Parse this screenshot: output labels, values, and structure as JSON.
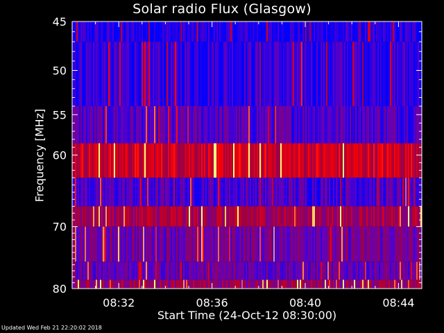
{
  "chart_data": {
    "type": "heatmap",
    "title": "Solar radio Flux (Glasgow)",
    "xlabel": "Start Time (24-Oct-12 08:30:00)",
    "ylabel": "Frequency [MHz]",
    "xlim": [
      "08:30:00",
      "08:45:00"
    ],
    "ylim": [
      80,
      45
    ],
    "x_ticks": [
      "08:32",
      "08:36",
      "08:40",
      "08:44"
    ],
    "y_ticks": [
      45,
      50,
      55,
      60,
      70,
      80
    ],
    "colormap": [
      "#0000ff",
      "#6000c0",
      "#a00040",
      "#ff0000",
      "#ffff80"
    ],
    "bands": [
      {
        "from_mhz": 45,
        "to_mhz": 47,
        "level": 0.08
      },
      {
        "from_mhz": 47,
        "to_mhz": 54,
        "level": 0.14
      },
      {
        "from_mhz": 54,
        "to_mhz": 58.5,
        "level": 0.22
      },
      {
        "from_mhz": 58.5,
        "to_mhz": 63,
        "level": 0.62
      },
      {
        "from_mhz": 63,
        "to_mhz": 67,
        "level": 0.2
      },
      {
        "from_mhz": 67,
        "to_mhz": 70,
        "level": 0.5
      },
      {
        "from_mhz": 70,
        "to_mhz": 75.5,
        "level": 0.32
      },
      {
        "from_mhz": 75.5,
        "to_mhz": 78.5,
        "level": 0.28
      },
      {
        "from_mhz": 78.5,
        "to_mhz": 80,
        "level": 0.45
      }
    ]
  },
  "footer": "Updated Wed Feb 21 22:20:02 2018"
}
